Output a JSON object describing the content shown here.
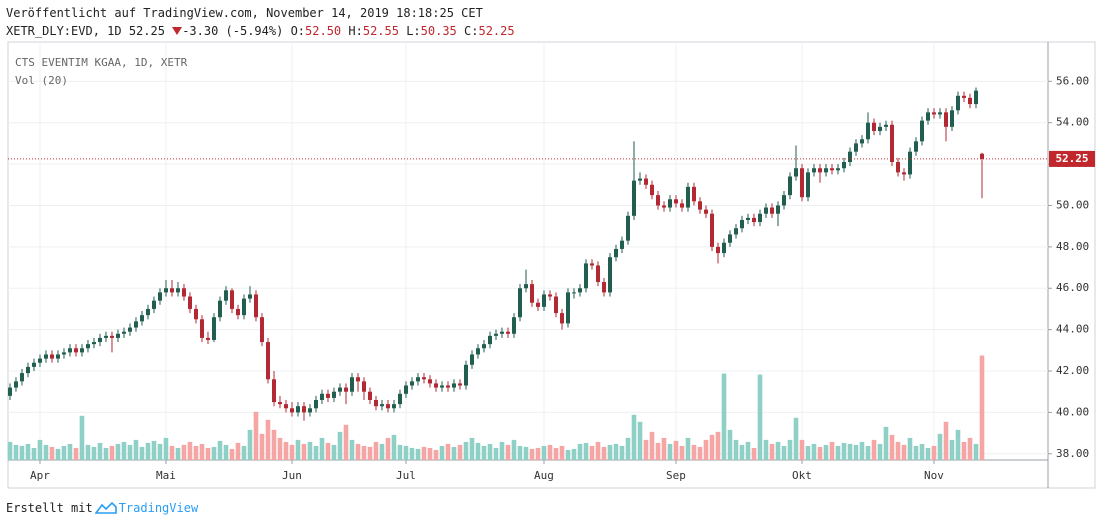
{
  "header": {
    "published": "Veröffentlicht auf TradingView.com, November 14, 2019 18:18:25 CET",
    "symbol": "XETR_DLY:EVD, 1D",
    "change": "-3.30 (-5.94%)",
    "ohlc": [
      {
        "label": "O:",
        "value": "52.50"
      },
      {
        "label": "H:",
        "value": "52.55"
      },
      {
        "label": "L:",
        "value": "50.35"
      },
      {
        "label": "C:",
        "value": "52.25"
      }
    ]
  },
  "footer": {
    "text": "Erstellt mit",
    "brand": "TradingView"
  },
  "chart_data": {
    "type": "candlestick",
    "title": "CTS EVENTIM KGAA, 1D, XETR",
    "subtitle": "Vol (20)",
    "up_color": "#215e4f",
    "down_color": "#b22833",
    "volume_up_color": "#8fd0c6",
    "volume_down_color": "#f6a5a5",
    "last_color": "#c0282e",
    "grid": true,
    "ylim": [
      37.7,
      57.9
    ],
    "yticks": [
      {
        "value": 38,
        "label": "38.00"
      },
      {
        "value": 40,
        "label": "40.00"
      },
      {
        "value": 42,
        "label": "42.00"
      },
      {
        "value": 44,
        "label": "44.00"
      },
      {
        "value": 46,
        "label": "46.00"
      },
      {
        "value": 48,
        "label": "48.00"
      },
      {
        "value": 50,
        "label": "50.00"
      },
      {
        "value": 52,
        "label": "52.00"
      },
      {
        "value": 54,
        "label": "54.00"
      },
      {
        "value": 56,
        "label": "56.00"
      }
    ],
    "xlim": [
      -0.33,
      173
    ],
    "xticks": [
      {
        "value": 5,
        "label": "Apr"
      },
      {
        "value": 26,
        "label": "Mai"
      },
      {
        "value": 47,
        "label": "Jun"
      },
      {
        "value": 66,
        "label": "Jul"
      },
      {
        "value": 89,
        "label": "Aug"
      },
      {
        "value": 111,
        "label": "Sep"
      },
      {
        "value": 132,
        "label": "Okt"
      },
      {
        "value": 154,
        "label": "Nov"
      }
    ],
    "ohlc": [
      [
        40.8,
        41.4,
        40.6,
        41.2
      ],
      [
        41.2,
        41.7,
        41.0,
        41.5
      ],
      [
        41.5,
        42.1,
        41.3,
        41.9
      ],
      [
        41.9,
        42.4,
        41.7,
        42.2
      ],
      [
        42.2,
        42.6,
        42.0,
        42.4
      ],
      [
        42.4,
        42.8,
        42.2,
        42.6
      ],
      [
        42.6,
        43.0,
        42.4,
        42.8
      ],
      [
        42.8,
        43.0,
        42.4,
        42.6
      ],
      [
        42.6,
        43.0,
        42.4,
        42.8
      ],
      [
        42.8,
        43.1,
        42.6,
        42.9
      ],
      [
        42.9,
        43.3,
        42.7,
        43.1
      ],
      [
        43.1,
        43.3,
        42.7,
        42.9
      ],
      [
        42.9,
        43.3,
        42.7,
        43.1
      ],
      [
        43.1,
        43.5,
        42.9,
        43.3
      ],
      [
        43.3,
        43.6,
        43.1,
        43.4
      ],
      [
        43.4,
        43.8,
        43.2,
        43.6
      ],
      [
        43.6,
        43.9,
        43.4,
        43.7
      ],
      [
        43.7,
        43.9,
        42.9,
        43.6
      ],
      [
        43.6,
        44.0,
        43.4,
        43.8
      ],
      [
        43.8,
        44.1,
        43.6,
        43.9
      ],
      [
        43.9,
        44.3,
        43.7,
        44.1
      ],
      [
        44.1,
        44.6,
        43.9,
        44.4
      ],
      [
        44.4,
        44.9,
        44.2,
        44.7
      ],
      [
        44.7,
        45.2,
        44.5,
        45.0
      ],
      [
        45.0,
        45.6,
        44.8,
        45.4
      ],
      [
        45.4,
        46.0,
        45.2,
        45.8
      ],
      [
        45.8,
        46.4,
        45.6,
        46.0
      ],
      [
        46.0,
        46.4,
        45.6,
        45.8
      ],
      [
        45.8,
        46.3,
        45.6,
        46.0
      ],
      [
        46.0,
        46.2,
        45.4,
        45.6
      ],
      [
        45.6,
        45.8,
        44.8,
        45.0
      ],
      [
        45.0,
        45.2,
        44.3,
        44.5
      ],
      [
        44.5,
        44.7,
        43.4,
        43.6
      ],
      [
        43.6,
        43.9,
        43.3,
        43.5
      ],
      [
        43.5,
        44.8,
        43.4,
        44.6
      ],
      [
        44.6,
        45.6,
        44.4,
        45.4
      ],
      [
        45.4,
        46.1,
        45.2,
        45.9
      ],
      [
        45.9,
        46.0,
        44.8,
        45.0
      ],
      [
        45.0,
        45.2,
        44.5,
        44.7
      ],
      [
        44.7,
        45.7,
        44.5,
        45.5
      ],
      [
        45.5,
        46.1,
        45.3,
        45.7
      ],
      [
        45.7,
        45.9,
        44.4,
        44.6
      ],
      [
        44.6,
        44.8,
        43.2,
        43.4
      ],
      [
        43.4,
        43.6,
        41.4,
        41.6
      ],
      [
        41.6,
        42.0,
        40.3,
        40.5
      ],
      [
        40.5,
        40.8,
        40.2,
        40.4
      ],
      [
        40.4,
        40.6,
        40.0,
        40.2
      ],
      [
        40.2,
        40.5,
        39.8,
        40.0
      ],
      [
        40.0,
        40.5,
        39.8,
        40.3
      ],
      [
        40.3,
        40.5,
        39.6,
        40.0
      ],
      [
        40.0,
        40.4,
        39.8,
        40.2
      ],
      [
        40.2,
        40.8,
        40.0,
        40.6
      ],
      [
        40.6,
        41.1,
        40.4,
        40.9
      ],
      [
        40.9,
        41.1,
        40.5,
        40.7
      ],
      [
        40.7,
        41.2,
        40.5,
        41.0
      ],
      [
        41.0,
        41.4,
        40.8,
        41.2
      ],
      [
        41.2,
        41.4,
        40.4,
        41.0
      ],
      [
        41.0,
        41.9,
        40.8,
        41.7
      ],
      [
        41.7,
        41.9,
        41.0,
        41.5
      ],
      [
        41.5,
        41.7,
        40.6,
        41.0
      ],
      [
        41.0,
        41.2,
        40.4,
        40.6
      ],
      [
        40.6,
        40.8,
        40.1,
        40.3
      ],
      [
        40.3,
        40.6,
        40.1,
        40.4
      ],
      [
        40.4,
        40.6,
        40.0,
        40.2
      ],
      [
        40.2,
        40.6,
        40.0,
        40.4
      ],
      [
        40.4,
        41.1,
        40.2,
        40.9
      ],
      [
        40.9,
        41.5,
        40.7,
        41.3
      ],
      [
        41.3,
        41.7,
        41.1,
        41.5
      ],
      [
        41.5,
        41.9,
        41.3,
        41.7
      ],
      [
        41.7,
        41.9,
        41.4,
        41.6
      ],
      [
        41.6,
        41.8,
        41.2,
        41.4
      ],
      [
        41.4,
        41.6,
        41.0,
        41.2
      ],
      [
        41.2,
        41.5,
        41.0,
        41.3
      ],
      [
        41.3,
        41.5,
        41.0,
        41.2
      ],
      [
        41.2,
        41.6,
        41.0,
        41.4
      ],
      [
        41.4,
        41.6,
        41.1,
        41.3
      ],
      [
        41.3,
        42.5,
        41.1,
        42.3
      ],
      [
        42.3,
        43.0,
        42.1,
        42.8
      ],
      [
        42.8,
        43.3,
        42.6,
        43.1
      ],
      [
        43.1,
        43.5,
        42.9,
        43.3
      ],
      [
        43.3,
        43.9,
        43.1,
        43.7
      ],
      [
        43.7,
        44.0,
        43.5,
        43.8
      ],
      [
        43.8,
        44.1,
        43.6,
        43.9
      ],
      [
        43.9,
        44.1,
        43.6,
        43.8
      ],
      [
        43.8,
        44.8,
        43.6,
        44.6
      ],
      [
        44.6,
        46.2,
        44.4,
        46.0
      ],
      [
        46.0,
        46.9,
        45.8,
        46.2
      ],
      [
        46.2,
        46.4,
        45.1,
        45.3
      ],
      [
        45.3,
        45.5,
        44.9,
        45.1
      ],
      [
        45.1,
        45.9,
        44.9,
        45.7
      ],
      [
        45.7,
        45.9,
        45.4,
        45.6
      ],
      [
        45.6,
        45.8,
        44.6,
        44.8
      ],
      [
        44.8,
        45.0,
        44.0,
        44.3
      ],
      [
        44.3,
        46.0,
        44.1,
        45.8
      ],
      [
        45.8,
        46.0,
        45.5,
        45.8
      ],
      [
        45.8,
        46.2,
        45.6,
        46.0
      ],
      [
        46.0,
        47.4,
        45.8,
        47.2
      ],
      [
        47.2,
        47.4,
        46.9,
        47.1
      ],
      [
        47.1,
        47.3,
        46.1,
        46.3
      ],
      [
        46.3,
        46.5,
        45.6,
        45.8
      ],
      [
        45.8,
        47.7,
        45.6,
        47.5
      ],
      [
        47.5,
        48.1,
        47.3,
        47.9
      ],
      [
        47.9,
        48.5,
        47.7,
        48.3
      ],
      [
        48.3,
        49.7,
        48.1,
        49.5
      ],
      [
        49.5,
        53.1,
        49.3,
        51.2
      ],
      [
        51.2,
        51.6,
        51.0,
        51.3
      ],
      [
        51.3,
        51.5,
        50.8,
        51.0
      ],
      [
        51.0,
        51.2,
        50.3,
        50.5
      ],
      [
        50.5,
        50.7,
        49.8,
        50.0
      ],
      [
        50.0,
        50.2,
        49.7,
        49.9
      ],
      [
        49.9,
        50.5,
        49.7,
        50.3
      ],
      [
        50.3,
        50.5,
        49.9,
        50.1
      ],
      [
        50.1,
        50.3,
        49.7,
        49.9
      ],
      [
        49.9,
        51.1,
        49.7,
        50.9
      ],
      [
        50.9,
        51.1,
        50.0,
        50.2
      ],
      [
        50.2,
        50.4,
        49.6,
        49.8
      ],
      [
        49.8,
        50.0,
        49.4,
        49.6
      ],
      [
        49.6,
        49.8,
        47.8,
        48.0
      ],
      [
        48.0,
        48.2,
        47.2,
        47.7
      ],
      [
        47.7,
        48.4,
        47.5,
        48.2
      ],
      [
        48.2,
        48.8,
        48.0,
        48.6
      ],
      [
        48.6,
        49.1,
        48.4,
        48.9
      ],
      [
        48.9,
        49.5,
        48.7,
        49.3
      ],
      [
        49.3,
        49.6,
        49.1,
        49.4
      ],
      [
        49.4,
        49.6,
        49.0,
        49.2
      ],
      [
        49.2,
        49.8,
        49.0,
        49.6
      ],
      [
        49.6,
        50.1,
        49.4,
        49.9
      ],
      [
        49.9,
        50.1,
        49.4,
        49.6
      ],
      [
        49.6,
        50.2,
        49.0,
        50.0
      ],
      [
        50.0,
        50.7,
        49.8,
        50.5
      ],
      [
        50.5,
        51.6,
        50.3,
        51.4
      ],
      [
        51.4,
        52.9,
        51.2,
        51.8
      ],
      [
        51.8,
        52.0,
        50.2,
        50.4
      ],
      [
        50.4,
        51.8,
        50.2,
        51.6
      ],
      [
        51.6,
        52.0,
        51.4,
        51.8
      ],
      [
        51.8,
        52.0,
        51.1,
        51.6
      ],
      [
        51.6,
        52.0,
        51.4,
        51.8
      ],
      [
        51.8,
        52.0,
        51.5,
        51.7
      ],
      [
        51.7,
        52.0,
        51.5,
        51.8
      ],
      [
        51.8,
        52.3,
        51.6,
        52.1
      ],
      [
        52.1,
        52.8,
        51.9,
        52.6
      ],
      [
        52.6,
        53.2,
        52.4,
        53.0
      ],
      [
        53.0,
        53.4,
        52.8,
        53.2
      ],
      [
        53.2,
        54.5,
        53.0,
        54.0
      ],
      [
        54.0,
        54.2,
        53.4,
        53.6
      ],
      [
        53.6,
        54.0,
        53.4,
        53.8
      ],
      [
        53.8,
        54.1,
        53.6,
        53.9
      ],
      [
        53.9,
        54.1,
        51.9,
        52.1
      ],
      [
        52.1,
        52.3,
        51.4,
        51.6
      ],
      [
        51.6,
        51.8,
        51.2,
        51.5
      ],
      [
        51.5,
        52.8,
        51.3,
        52.6
      ],
      [
        52.6,
        53.3,
        52.4,
        53.1
      ],
      [
        53.1,
        54.3,
        52.9,
        54.1
      ],
      [
        54.1,
        54.7,
        53.9,
        54.5
      ],
      [
        54.5,
        54.7,
        54.2,
        54.4
      ],
      [
        54.4,
        54.7,
        54.2,
        54.5
      ],
      [
        54.5,
        54.7,
        53.1,
        53.8
      ],
      [
        53.8,
        54.8,
        53.6,
        54.6
      ],
      [
        54.6,
        55.5,
        54.4,
        55.3
      ],
      [
        55.3,
        55.5,
        55.0,
        55.2
      ],
      [
        55.2,
        55.4,
        54.7,
        54.9
      ],
      [
        54.9,
        55.7,
        54.7,
        55.55
      ],
      [
        52.5,
        52.55,
        50.35,
        52.25
      ]
    ],
    "volume": [
      18,
      15,
      14,
      16,
      12,
      20,
      15,
      13,
      11,
      14,
      16,
      12,
      44,
      15,
      13,
      17,
      12,
      14,
      16,
      18,
      15,
      20,
      13,
      17,
      19,
      16,
      22,
      14,
      12,
      15,
      18,
      14,
      16,
      12,
      13,
      19,
      15,
      11,
      17,
      14,
      30,
      48,
      26,
      40,
      30,
      22,
      18,
      15,
      20,
      16,
      18,
      14,
      22,
      17,
      15,
      28,
      35,
      20,
      16,
      14,
      13,
      18,
      16,
      22,
      25,
      15,
      14,
      12,
      11,
      13,
      12,
      10,
      14,
      16,
      13,
      15,
      18,
      22,
      17,
      14,
      16,
      12,
      18,
      15,
      20,
      14,
      13,
      11,
      12,
      14,
      15,
      12,
      14,
      10,
      11,
      16,
      17,
      14,
      18,
      13,
      15,
      16,
      14,
      22,
      45,
      38,
      20,
      28,
      17,
      22,
      16,
      19,
      14,
      22,
      15,
      13,
      20,
      25,
      28,
      86,
      30,
      20,
      15,
      18,
      12,
      85,
      20,
      16,
      18,
      14,
      20,
      42,
      20,
      14,
      16,
      13,
      15,
      18,
      14,
      17,
      16,
      15,
      18,
      14,
      20,
      16,
      33,
      25,
      18,
      15,
      22,
      14,
      16,
      12,
      14,
      26,
      38,
      20,
      30,
      18,
      22,
      16,
      104
    ]
  }
}
